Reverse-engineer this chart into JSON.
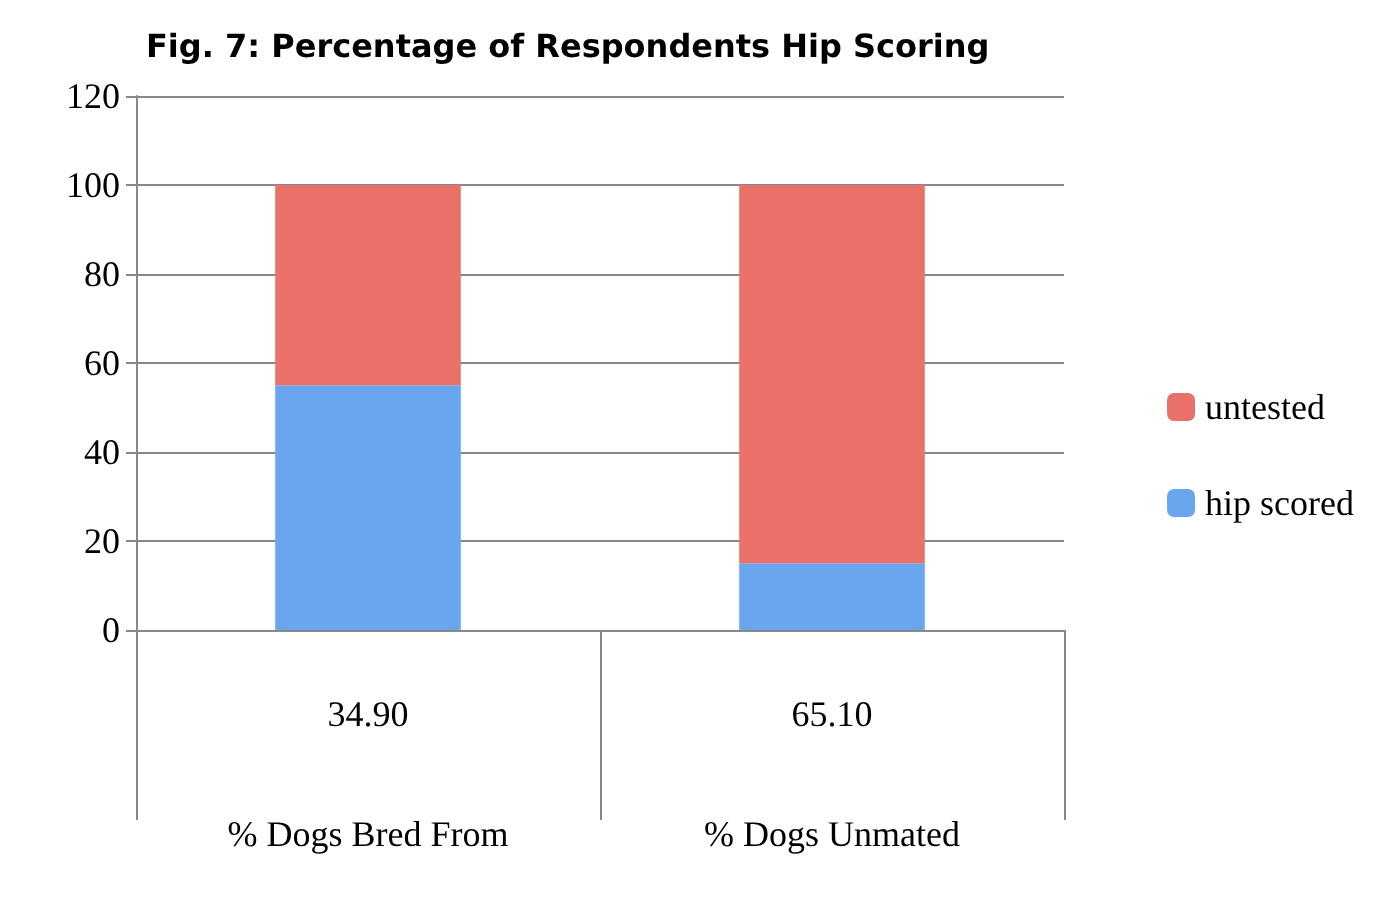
{
  "chart_data": {
    "type": "bar",
    "title": "Fig. 7: Percentage of Respondents Hip Scoring",
    "categories": [
      "34.90\n% Dogs Bred From",
      "65.10\n% Dogs Unmated"
    ],
    "series": [
      {
        "name": "hip scored",
        "color": "#6aa6ee",
        "values": [
          55,
          15
        ]
      },
      {
        "name": "untested",
        "color": "#e9716a",
        "values": [
          45,
          85
        ]
      }
    ],
    "stacked": true,
    "ylim": [
      0,
      120
    ],
    "yticks": [
      0,
      20,
      40,
      60,
      80,
      100,
      120
    ],
    "grid": "y",
    "legend": "right"
  }
}
